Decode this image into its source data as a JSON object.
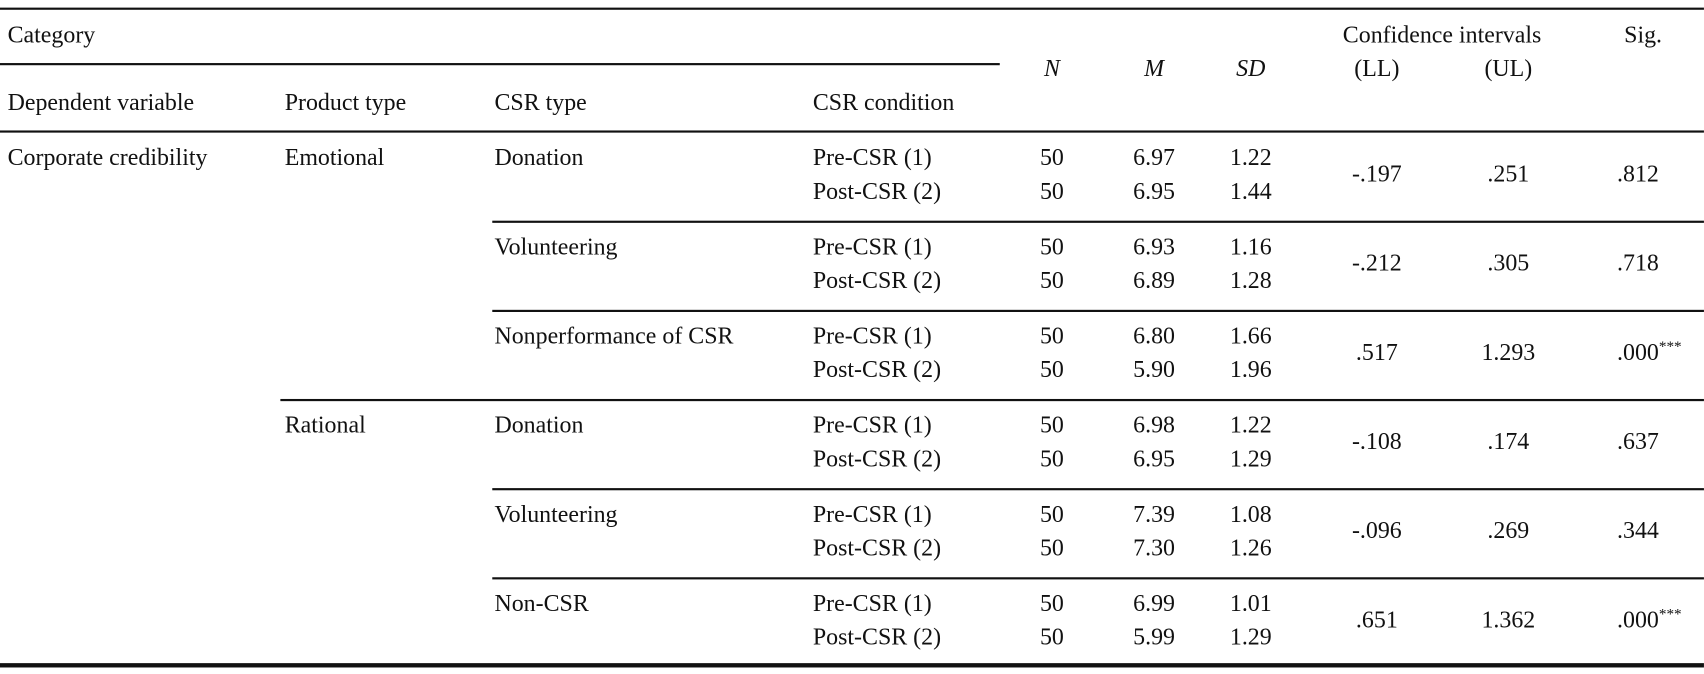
{
  "header": {
    "category": "Category",
    "dependent_variable": "Dependent variable",
    "product_type": "Product type",
    "csr_type": "CSR type",
    "csr_condition": "CSR condition",
    "n": "N",
    "m": "M",
    "sd": "SD",
    "confidence_intervals": "Confidence intervals",
    "ll": "(LL)",
    "ul": "(UL)",
    "sig": "Sig."
  },
  "dependent_variable": "Corporate credibility",
  "groups": [
    {
      "product_type": "Emotional",
      "csr": [
        {
          "type": "Donation",
          "conditions": [
            {
              "label": "Pre-CSR (1)",
              "n": "50",
              "m": "6.97",
              "sd": "1.22"
            },
            {
              "label": "Post-CSR (2)",
              "n": "50",
              "m": "6.95",
              "sd": "1.44"
            }
          ],
          "ll": "-.197",
          "ul": ".251",
          "sig": ".812"
        },
        {
          "type": "Volunteering",
          "conditions": [
            {
              "label": "Pre-CSR (1)",
              "n": "50",
              "m": "6.93",
              "sd": "1.16"
            },
            {
              "label": "Post-CSR (2)",
              "n": "50",
              "m": "6.89",
              "sd": "1.28"
            }
          ],
          "ll": "-.212",
          "ul": ".305",
          "sig": ".718"
        },
        {
          "type": "Nonperformance of CSR",
          "conditions": [
            {
              "label": "Pre-CSR (1)",
              "n": "50",
              "m": "6.80",
              "sd": "1.66"
            },
            {
              "label": "Post-CSR (2)",
              "n": "50",
              "m": "5.90",
              "sd": "1.96"
            }
          ],
          "ll": ".517",
          "ul": "1.293",
          "sig": ".000",
          "sig_mark": "***"
        }
      ]
    },
    {
      "product_type": "Rational",
      "csr": [
        {
          "type": "Donation",
          "conditions": [
            {
              "label": "Pre-CSR (1)",
              "n": "50",
              "m": "6.98",
              "sd": "1.22"
            },
            {
              "label": "Post-CSR (2)",
              "n": "50",
              "m": "6.95",
              "sd": "1.29"
            }
          ],
          "ll": "-.108",
          "ul": ".174",
          "sig": ".637"
        },
        {
          "type": "Volunteering",
          "conditions": [
            {
              "label": "Pre-CSR (1)",
              "n": "50",
              "m": "7.39",
              "sd": "1.08"
            },
            {
              "label": "Post-CSR (2)",
              "n": "50",
              "m": "7.30",
              "sd": "1.26"
            }
          ],
          "ll": "-.096",
          "ul": ".269",
          "sig": ".344"
        },
        {
          "type": "Non-CSR",
          "conditions": [
            {
              "label": "Pre-CSR (1)",
              "n": "50",
              "m": "6.99",
              "sd": "1.01"
            },
            {
              "label": "Post-CSR (2)",
              "n": "50",
              "m": "5.99",
              "sd": "1.29"
            }
          ],
          "ll": ".651",
          "ul": "1.362",
          "sig": ".000",
          "sig_mark": "***"
        }
      ]
    }
  ]
}
